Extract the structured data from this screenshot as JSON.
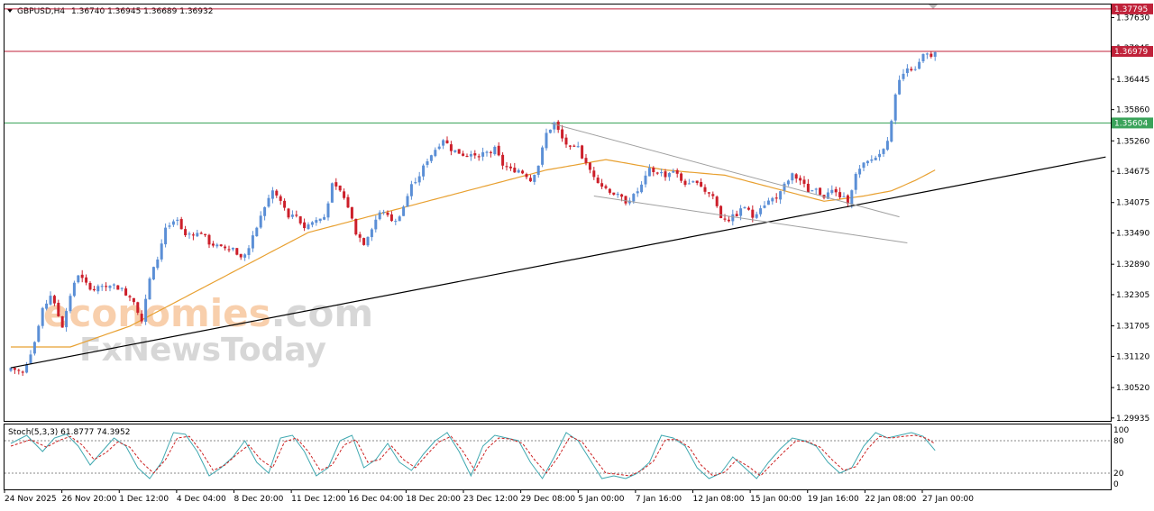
{
  "header": {
    "symbol": "GBPUSD,H4",
    "ohlc": "1.36740 1.36945 1.36689 1.36932"
  },
  "watermark": {
    "line1_part1": "economies",
    "line1_part2": ".com",
    "line2": "FxNewsToday"
  },
  "colors": {
    "bull": "#5b8fd6",
    "bear": "#cc1f2a",
    "ma": "#e8a030",
    "resistance": "#c0223a",
    "support": "#3aa35a",
    "trendline": "#000000",
    "channel": "#a0a0a0",
    "stoch_main": "#3fa8b0",
    "stoch_signal": "#cc2222"
  },
  "chart_data": [
    {
      "type": "candlestick",
      "title": "GBPUSD,H4",
      "x_tick_labels": [
        "24 Nov 2025",
        "26 Nov 20:00",
        "1 Dec 12:00",
        "4 Dec 04:00",
        "8 Dec 20:00",
        "11 Dec 12:00",
        "16 Dec 04:00",
        "18 Dec 20:00",
        "23 Dec 12:00",
        "29 Dec 08:00",
        "5 Jan 00:00",
        "7 Jan 16:00",
        "12 Jan 08:00",
        "15 Jan 00:00",
        "19 Jan 16:00",
        "22 Jan 08:00",
        "27 Jan 00:00"
      ],
      "y_tick_labels": [
        "1.37630",
        "1.37045",
        "1.36445",
        "1.35860",
        "1.35260",
        "1.34675",
        "1.34075",
        "1.33490",
        "1.32890",
        "1.32305",
        "1.31705",
        "1.31120",
        "1.30520",
        "1.29935"
      ],
      "ylim": [
        1.2988,
        1.3788
      ],
      "close_anchors": [
        [
          0,
          1.309
        ],
        [
          3,
          1.308
        ],
        [
          6,
          1.314
        ],
        [
          8,
          1.32
        ],
        [
          10,
          1.323
        ],
        [
          13,
          1.317
        ],
        [
          15,
          1.323
        ],
        [
          17,
          1.327
        ],
        [
          19,
          1.325
        ],
        [
          21,
          1.324
        ],
        [
          25,
          1.325
        ],
        [
          28,
          1.324
        ],
        [
          31,
          1.322
        ],
        [
          33,
          1.318
        ],
        [
          35,
          1.326
        ],
        [
          37,
          1.33
        ],
        [
          39,
          1.336
        ],
        [
          42,
          1.337
        ],
        [
          44,
          1.334
        ],
        [
          48,
          1.335
        ],
        [
          50,
          1.333
        ],
        [
          53,
          1.332
        ],
        [
          56,
          1.332
        ],
        [
          58,
          1.33
        ],
        [
          60,
          1.332
        ],
        [
          62,
          1.336
        ],
        [
          64,
          1.34
        ],
        [
          66,
          1.343
        ],
        [
          68,
          1.341
        ],
        [
          70,
          1.338
        ],
        [
          72,
          1.338
        ],
        [
          74,
          1.336
        ],
        [
          76,
          1.337
        ],
        [
          79,
          1.338
        ],
        [
          81,
          1.344
        ],
        [
          83,
          1.343
        ],
        [
          85,
          1.34
        ],
        [
          87,
          1.335
        ],
        [
          89,
          1.333
        ],
        [
          91,
          1.336
        ],
        [
          93,
          1.339
        ],
        [
          95,
          1.338
        ],
        [
          97,
          1.337
        ],
        [
          99,
          1.34
        ],
        [
          101,
          1.344
        ],
        [
          103,
          1.346
        ],
        [
          105,
          1.349
        ],
        [
          107,
          1.351
        ],
        [
          109,
          1.353
        ],
        [
          111,
          1.351
        ],
        [
          114,
          1.35
        ],
        [
          117,
          1.35
        ],
        [
          120,
          1.3505
        ],
        [
          122,
          1.351
        ],
        [
          124,
          1.348
        ],
        [
          126,
          1.347
        ],
        [
          128,
          1.347
        ],
        [
          130,
          1.346
        ],
        [
          131,
          1.345
        ],
        [
          133,
          1.348
        ],
        [
          135,
          1.354
        ],
        [
          137,
          1.356
        ],
        [
          139,
          1.353
        ],
        [
          141,
          1.351
        ],
        [
          143,
          1.351
        ],
        [
          145,
          1.348
        ],
        [
          147,
          1.346
        ],
        [
          149,
          1.344
        ],
        [
          151,
          1.343
        ],
        [
          153,
          1.342
        ],
        [
          155,
          1.341
        ],
        [
          157,
          1.342
        ],
        [
          159,
          1.344
        ],
        [
          161,
          1.347
        ],
        [
          163,
          1.3465
        ],
        [
          165,
          1.346
        ],
        [
          167,
          1.347
        ],
        [
          169,
          1.345
        ],
        [
          171,
          1.344
        ],
        [
          173,
          1.345
        ],
        [
          175,
          1.343
        ],
        [
          177,
          1.342
        ],
        [
          179,
          1.338
        ],
        [
          181,
          1.3375
        ],
        [
          183,
          1.3385
        ],
        [
          185,
          1.34
        ],
        [
          187,
          1.338
        ],
        [
          189,
          1.34
        ],
        [
          191,
          1.341
        ],
        [
          193,
          1.342
        ],
        [
          195,
          1.344
        ],
        [
          197,
          1.346
        ],
        [
          199,
          1.345
        ],
        [
          201,
          1.343
        ],
        [
          203,
          1.343
        ],
        [
          205,
          1.342
        ],
        [
          207,
          1.343
        ],
        [
          209,
          1.342
        ],
        [
          211,
          1.341
        ],
        [
          213,
          1.346
        ],
        [
          215,
          1.348
        ],
        [
          217,
          1.349
        ],
        [
          219,
          1.35
        ],
        [
          221,
          1.353
        ],
        [
          222,
          1.356
        ],
        [
          223,
          1.362
        ],
        [
          224,
          1.364
        ],
        [
          226,
          1.367
        ],
        [
          228,
          1.366
        ],
        [
          230,
          1.369
        ],
        [
          232,
          1.3685
        ],
        [
          233,
          1.3693
        ]
      ],
      "ma_anchors": [
        [
          0,
          1.313
        ],
        [
          15,
          1.313
        ],
        [
          30,
          1.317
        ],
        [
          45,
          1.323
        ],
        [
          60,
          1.329
        ],
        [
          75,
          1.335
        ],
        [
          90,
          1.338
        ],
        [
          105,
          1.341
        ],
        [
          120,
          1.344
        ],
        [
          135,
          1.347
        ],
        [
          150,
          1.349
        ],
        [
          165,
          1.347
        ],
        [
          180,
          1.346
        ],
        [
          195,
          1.343
        ],
        [
          205,
          1.341
        ],
        [
          215,
          1.342
        ],
        [
          222,
          1.343
        ],
        [
          228,
          1.345
        ],
        [
          233,
          1.347
        ]
      ],
      "horizontal_levels": [
        {
          "price": 1.37795,
          "label": "1.37795",
          "kind": "resistance"
        },
        {
          "price": 1.36979,
          "label": "1.36979",
          "kind": "resistance"
        },
        {
          "price": 1.35604,
          "label": "1.35604",
          "kind": "support"
        }
      ],
      "trendline": {
        "from": [
          0,
          1.309
        ],
        "to": [
          276,
          1.3495
        ]
      },
      "channel_lines": [
        {
          "from": [
            136,
            1.356
          ],
          "to": [
            224,
            1.338
          ]
        },
        {
          "from": [
            147,
            1.342
          ],
          "to": [
            226,
            1.333
          ]
        }
      ],
      "bar_count": 234
    },
    {
      "type": "line",
      "title": "Stoch(5,3,3) 61.8777 74.3952",
      "y_tick_labels": [
        "100",
        "80",
        "20",
        "0"
      ],
      "ylim": [
        0,
        100
      ],
      "levels": [
        80,
        20
      ],
      "series": [
        {
          "name": "main",
          "values_anchors": [
            [
              0,
              75
            ],
            [
              4,
              90
            ],
            [
              8,
              60
            ],
            [
              11,
              85
            ],
            [
              14,
              92
            ],
            [
              17,
              70
            ],
            [
              20,
              35
            ],
            [
              23,
              60
            ],
            [
              26,
              85
            ],
            [
              29,
              70
            ],
            [
              32,
              30
            ],
            [
              35,
              10
            ],
            [
              38,
              40
            ],
            [
              41,
              95
            ],
            [
              44,
              92
            ],
            [
              47,
              60
            ],
            [
              50,
              15
            ],
            [
              53,
              30
            ],
            [
              56,
              50
            ],
            [
              59,
              80
            ],
            [
              62,
              40
            ],
            [
              65,
              20
            ],
            [
              68,
              85
            ],
            [
              71,
              90
            ],
            [
              74,
              60
            ],
            [
              77,
              15
            ],
            [
              80,
              30
            ],
            [
              83,
              80
            ],
            [
              86,
              90
            ],
            [
              89,
              30
            ],
            [
              92,
              45
            ],
            [
              95,
              75
            ],
            [
              98,
              40
            ],
            [
              101,
              25
            ],
            [
              104,
              55
            ],
            [
              107,
              80
            ],
            [
              110,
              95
            ],
            [
              113,
              60
            ],
            [
              116,
              15
            ],
            [
              119,
              70
            ],
            [
              122,
              90
            ],
            [
              125,
              85
            ],
            [
              128,
              80
            ],
            [
              131,
              40
            ],
            [
              134,
              10
            ],
            [
              137,
              50
            ],
            [
              140,
              95
            ],
            [
              143,
              80
            ],
            [
              146,
              45
            ],
            [
              149,
              10
            ],
            [
              152,
              15
            ],
            [
              155,
              10
            ],
            [
              158,
              20
            ],
            [
              161,
              40
            ],
            [
              164,
              90
            ],
            [
              167,
              85
            ],
            [
              170,
              70
            ],
            [
              173,
              30
            ],
            [
              176,
              10
            ],
            [
              179,
              20
            ],
            [
              182,
              50
            ],
            [
              185,
              30
            ],
            [
              188,
              10
            ],
            [
              191,
              40
            ],
            [
              194,
              65
            ],
            [
              197,
              85
            ],
            [
              200,
              80
            ],
            [
              203,
              70
            ],
            [
              206,
              40
            ],
            [
              209,
              20
            ],
            [
              212,
              30
            ],
            [
              215,
              70
            ],
            [
              218,
              95
            ],
            [
              221,
              85
            ],
            [
              224,
              90
            ],
            [
              227,
              95
            ],
            [
              230,
              88
            ],
            [
              233,
              62
            ]
          ]
        },
        {
          "name": "signal",
          "values_anchors": [
            [
              0,
              70
            ],
            [
              5,
              82
            ],
            [
              9,
              68
            ],
            [
              12,
              80
            ],
            [
              15,
              88
            ],
            [
              18,
              72
            ],
            [
              21,
              45
            ],
            [
              24,
              58
            ],
            [
              27,
              78
            ],
            [
              30,
              68
            ],
            [
              33,
              40
            ],
            [
              36,
              20
            ],
            [
              39,
              45
            ],
            [
              42,
              85
            ],
            [
              45,
              88
            ],
            [
              48,
              60
            ],
            [
              51,
              25
            ],
            [
              54,
              35
            ],
            [
              57,
              55
            ],
            [
              60,
              72
            ],
            [
              63,
              45
            ],
            [
              66,
              30
            ],
            [
              69,
              78
            ],
            [
              72,
              85
            ],
            [
              75,
              60
            ],
            [
              78,
              25
            ],
            [
              81,
              35
            ],
            [
              84,
              72
            ],
            [
              87,
              82
            ],
            [
              90,
              40
            ],
            [
              93,
              45
            ],
            [
              96,
              70
            ],
            [
              99,
              45
            ],
            [
              102,
              30
            ],
            [
              105,
              55
            ],
            [
              108,
              78
            ],
            [
              111,
              88
            ],
            [
              114,
              60
            ],
            [
              117,
              25
            ],
            [
              120,
              65
            ],
            [
              123,
              85
            ],
            [
              126,
              83
            ],
            [
              129,
              75
            ],
            [
              132,
              45
            ],
            [
              135,
              20
            ],
            [
              138,
              50
            ],
            [
              141,
              88
            ],
            [
              144,
              78
            ],
            [
              147,
              48
            ],
            [
              150,
              20
            ],
            [
              153,
              18
            ],
            [
              156,
              15
            ],
            [
              159,
              25
            ],
            [
              162,
              42
            ],
            [
              165,
              82
            ],
            [
              168,
              82
            ],
            [
              171,
              68
            ],
            [
              174,
              35
            ],
            [
              177,
              15
            ],
            [
              180,
              22
            ],
            [
              183,
              45
            ],
            [
              186,
              32
            ],
            [
              189,
              15
            ],
            [
              192,
              38
            ],
            [
              195,
              60
            ],
            [
              198,
              80
            ],
            [
              201,
              78
            ],
            [
              204,
              68
            ],
            [
              207,
              45
            ],
            [
              210,
              25
            ],
            [
              213,
              32
            ],
            [
              216,
              65
            ],
            [
              219,
              88
            ],
            [
              222,
              85
            ],
            [
              225,
              88
            ],
            [
              228,
              90
            ],
            [
              231,
              84
            ],
            [
              233,
              74
            ]
          ]
        }
      ]
    }
  ]
}
